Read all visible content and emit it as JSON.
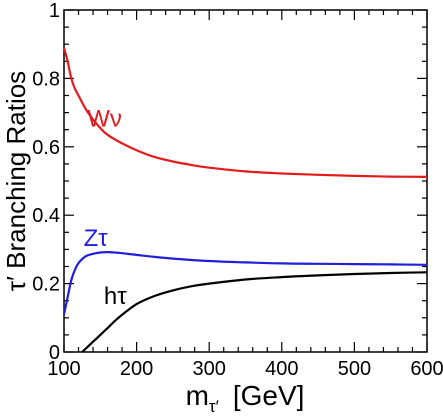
{
  "chart_data": {
    "type": "line",
    "title": "",
    "xlabel": "m",
    "xlabel_subscript": "τ′",
    "xlabel_unit": "[GeV]",
    "ylabel": "τ′ Branching Ratios",
    "xlim": [
      100,
      600
    ],
    "ylim": [
      0,
      1
    ],
    "x_ticks": [
      100,
      200,
      300,
      400,
      500,
      600
    ],
    "y_ticks": [
      0,
      0.2,
      0.4,
      0.6,
      0.8,
      1
    ],
    "y_tick_labels": [
      "0",
      "0.2",
      "0.4",
      "0.6",
      "0.8",
      "1"
    ],
    "grid": false,
    "legend": "none",
    "series": [
      {
        "name": "Wν",
        "color": "#e41a1c",
        "label_at": [
          132,
          0.66
        ],
        "x": [
          100,
          105,
          110,
          115,
          120,
          130,
          140,
          150,
          160,
          180,
          200,
          225,
          250,
          275,
          300,
          350,
          400,
          450,
          500,
          550,
          600
        ],
        "y": [
          0.89,
          0.85,
          0.8,
          0.77,
          0.75,
          0.71,
          0.68,
          0.655,
          0.635,
          0.61,
          0.59,
          0.57,
          0.557,
          0.547,
          0.539,
          0.528,
          0.522,
          0.518,
          0.515,
          0.513,
          0.512
        ]
      },
      {
        "name": "Zτ",
        "color": "#1f1fdd",
        "label_at": [
          127,
          0.31
        ],
        "x": [
          100,
          105,
          110,
          115,
          120,
          130,
          140,
          150,
          160,
          170,
          180,
          200,
          225,
          250,
          300,
          350,
          400,
          450,
          500,
          550,
          600
        ],
        "y": [
          0.11,
          0.16,
          0.21,
          0.24,
          0.26,
          0.28,
          0.287,
          0.291,
          0.292,
          0.291,
          0.289,
          0.284,
          0.278,
          0.273,
          0.266,
          0.262,
          0.259,
          0.258,
          0.257,
          0.256,
          0.255
        ]
      },
      {
        "name": "hτ",
        "color": "#000000",
        "label_at": [
          155,
          0.14
        ],
        "x": [
          125,
          130,
          140,
          150,
          160,
          175,
          200,
          225,
          250,
          275,
          300,
          350,
          400,
          450,
          500,
          550,
          600
        ],
        "y": [
          0.0,
          0.01,
          0.03,
          0.05,
          0.07,
          0.1,
          0.14,
          0.164,
          0.18,
          0.192,
          0.2,
          0.212,
          0.219,
          0.224,
          0.228,
          0.231,
          0.233
        ]
      }
    ]
  }
}
